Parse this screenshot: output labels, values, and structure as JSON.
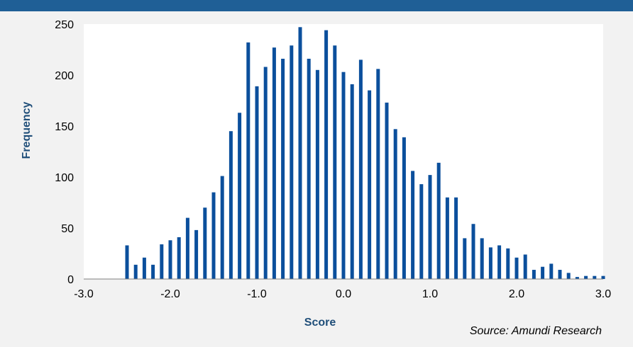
{
  "colors": {
    "bar": "#0b4f9c",
    "band": "#1f5f96",
    "background": "#f2f2f2",
    "plot_background": "#ffffff",
    "axis_title": "#1f4e79"
  },
  "source_note": "Source: Amundi Research",
  "chart_data": {
    "type": "bar",
    "title": "",
    "xlabel": "Score",
    "ylabel": "Frequency",
    "xlim": [
      -3.0,
      3.0
    ],
    "ylim": [
      0,
      250
    ],
    "xticks": [
      "-3.0",
      "-2.0",
      "-1.0",
      "0.0",
      "1.0",
      "2.0",
      "3.0"
    ],
    "yticks": [
      "0",
      "50",
      "100",
      "150",
      "200",
      "250"
    ],
    "grid": false,
    "legend": "none",
    "bin_width": 0.1,
    "x": [
      -2.5,
      -2.4,
      -2.3,
      -2.2,
      -2.1,
      -2.0,
      -1.9,
      -1.8,
      -1.7,
      -1.6,
      -1.5,
      -1.4,
      -1.3,
      -1.2,
      -1.1,
      -1.0,
      -0.9,
      -0.8,
      -0.7,
      -0.6,
      -0.5,
      -0.4,
      -0.3,
      -0.2,
      -0.1,
      0.0,
      0.1,
      0.2,
      0.3,
      0.4,
      0.5,
      0.6,
      0.7,
      0.8,
      0.9,
      1.0,
      1.1,
      1.2,
      1.3,
      1.4,
      1.5,
      1.6,
      1.7,
      1.8,
      1.9,
      2.0,
      2.1,
      2.2,
      2.3,
      2.4,
      2.5,
      2.6,
      2.7,
      2.8,
      2.9,
      3.0
    ],
    "values": [
      33,
      14,
      21,
      14,
      34,
      38,
      41,
      60,
      48,
      70,
      85,
      101,
      145,
      163,
      232,
      189,
      208,
      227,
      216,
      229,
      247,
      216,
      205,
      244,
      229,
      203,
      191,
      215,
      185,
      206,
      173,
      147,
      139,
      106,
      93,
      102,
      114,
      80,
      80,
      40,
      54,
      40,
      31,
      33,
      30,
      21,
      24,
      9,
      12,
      15,
      9,
      6,
      2,
      3,
      3,
      3
    ]
  }
}
